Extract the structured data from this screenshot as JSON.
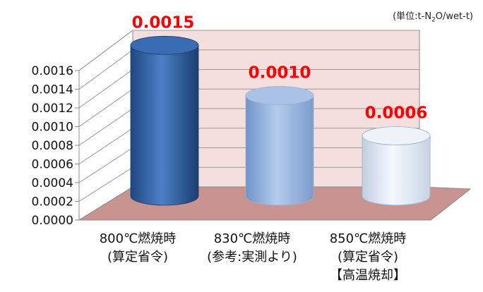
{
  "unit_note": {
    "prefix": "(単位:t-N",
    "sub": "2",
    "suffix": "O/wet-t)"
  },
  "chart_data": {
    "type": "bar",
    "style": "3d-cylinder",
    "categories": [
      [
        "800℃燃焼時",
        "(算定省令)"
      ],
      [
        "830℃燃焼時",
        "(参考:実測より)"
      ],
      [
        "850℃燃焼時",
        "(算定省令)",
        "【高温焼却】"
      ]
    ],
    "values": [
      0.0015,
      0.001,
      0.0006
    ],
    "data_labels": [
      "0.0015",
      "0.0010",
      "0.0006"
    ],
    "yticks": [
      "0.0000",
      "0.0002",
      "0.0004",
      "0.0006",
      "0.0008",
      "0.0010",
      "0.0012",
      "0.0014",
      "0.0016"
    ],
    "ylim": [
      0,
      0.0016
    ],
    "title": "",
    "xlabel": "",
    "ylabel": "",
    "grid": true,
    "colors": {
      "bars": [
        "#2e5fa3",
        "#8fb0de",
        "#dde7f3"
      ],
      "data_label": "#ff0000",
      "back_wall": "#f4dede",
      "floor": "#c99390"
    }
  }
}
